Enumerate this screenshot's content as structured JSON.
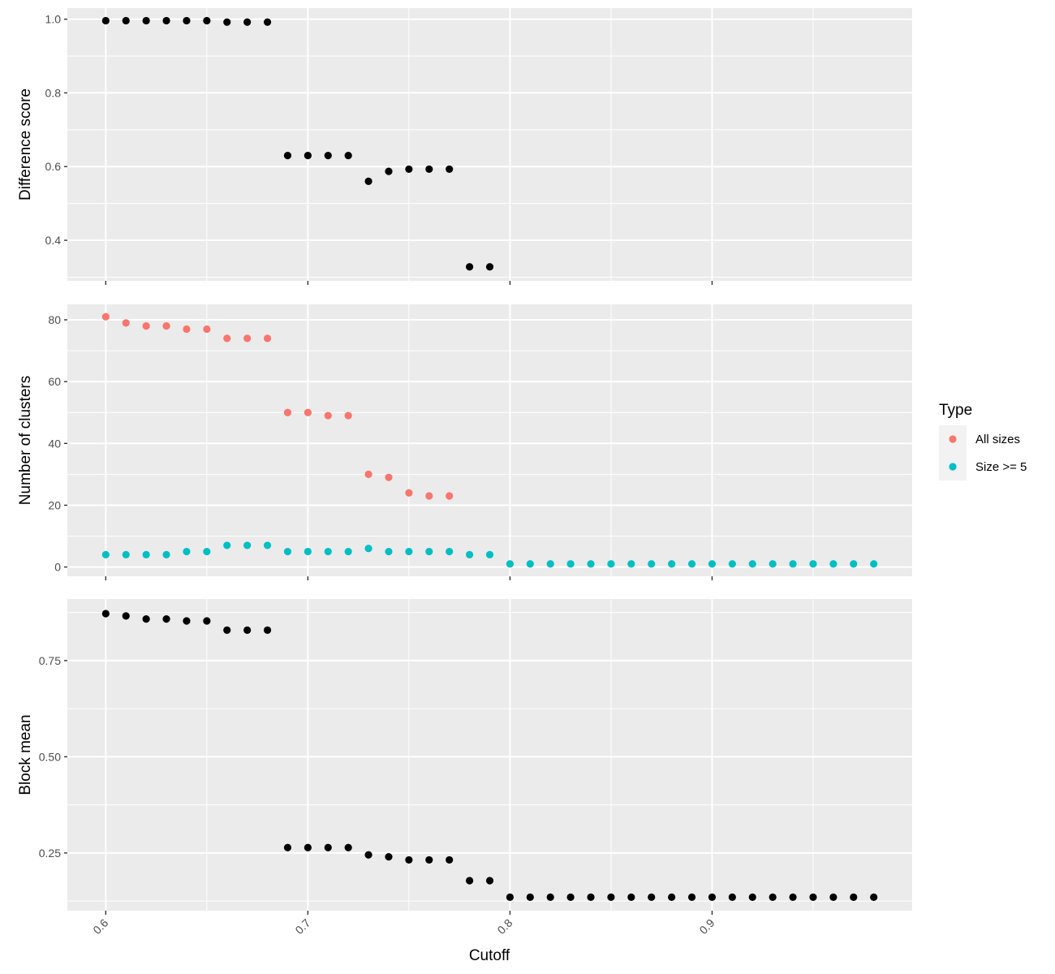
{
  "chart_data": {
    "type": "scatter",
    "xlabel": "Cutoff",
    "x_ticks": [
      0.6,
      0.7,
      0.8,
      0.9
    ],
    "xlim": [
      0.581,
      0.999
    ],
    "panels": [
      {
        "id": "difference",
        "ylabel": "Difference score",
        "ylim": [
          0.29,
          1.03
        ],
        "y_ticks": [
          0.4,
          0.6,
          0.8,
          1.0
        ],
        "y_tick_labels": [
          "0.4",
          "0.6",
          "0.8",
          "1.0"
        ],
        "show_x_labels": false,
        "series": [
          {
            "color": "#000000",
            "x": [
              0.6,
              0.61,
              0.62,
              0.63,
              0.64,
              0.65,
              0.66,
              0.67,
              0.68,
              0.69,
              0.7,
              0.71,
              0.72,
              0.73,
              0.74,
              0.75,
              0.76,
              0.77,
              0.78,
              0.79
            ],
            "y": [
              0.996,
              0.996,
              0.996,
              0.996,
              0.996,
              0.996,
              0.992,
              0.992,
              0.992,
              0.63,
              0.63,
              0.63,
              0.63,
              0.56,
              0.587,
              0.593,
              0.593,
              0.593,
              0.328,
              0.328
            ]
          }
        ]
      },
      {
        "id": "clusters",
        "ylabel": "Number of clusters",
        "ylim": [
          -3,
          85
        ],
        "y_ticks": [
          0,
          20,
          40,
          60,
          80
        ],
        "y_tick_labels": [
          "0",
          "20",
          "40",
          "60",
          "80"
        ],
        "show_x_labels": false,
        "series": [
          {
            "name": "All sizes",
            "color": "#F8766D",
            "x": [
              0.6,
              0.61,
              0.62,
              0.63,
              0.64,
              0.65,
              0.66,
              0.67,
              0.68,
              0.69,
              0.7,
              0.71,
              0.72,
              0.73,
              0.74,
              0.75,
              0.76,
              0.77
            ],
            "y": [
              81,
              79,
              78,
              78,
              77,
              77,
              74,
              74,
              74,
              50,
              50,
              49,
              49,
              30,
              29,
              24,
              23,
              23
            ]
          },
          {
            "name": "Size >= 5",
            "color": "#00BFC4",
            "x": [
              0.6,
              0.61,
              0.62,
              0.63,
              0.64,
              0.65,
              0.66,
              0.67,
              0.68,
              0.69,
              0.7,
              0.71,
              0.72,
              0.73,
              0.74,
              0.75,
              0.76,
              0.77,
              0.78,
              0.79,
              0.8,
              0.81,
              0.82,
              0.83,
              0.84,
              0.85,
              0.86,
              0.87,
              0.88,
              0.89,
              0.9,
              0.91,
              0.92,
              0.93,
              0.94,
              0.95,
              0.96,
              0.97,
              0.98
            ],
            "y": [
              4,
              4,
              4,
              4,
              5,
              5,
              7,
              7,
              7,
              5,
              5,
              5,
              5,
              6,
              5,
              5,
              5,
              5,
              4,
              4,
              1,
              1,
              1,
              1,
              1,
              1,
              1,
              1,
              1,
              1,
              1,
              1,
              1,
              1,
              1,
              1,
              1,
              1,
              1
            ]
          }
        ]
      },
      {
        "id": "blockmean",
        "ylabel": "Block mean",
        "ylim": [
          0.1,
          0.91
        ],
        "y_ticks": [
          0.25,
          0.5,
          0.75
        ],
        "y_tick_labels": [
          "0.25",
          "0.50",
          "0.75"
        ],
        "show_x_labels": true,
        "series": [
          {
            "color": "#000000",
            "x": [
              0.6,
              0.61,
              0.62,
              0.63,
              0.64,
              0.65,
              0.66,
              0.67,
              0.68,
              0.69,
              0.7,
              0.71,
              0.72,
              0.73,
              0.74,
              0.75,
              0.76,
              0.77,
              0.78,
              0.79,
              0.8,
              0.81,
              0.82,
              0.83,
              0.84,
              0.85,
              0.86,
              0.87,
              0.88,
              0.89,
              0.9,
              0.91,
              0.92,
              0.93,
              0.94,
              0.95,
              0.96,
              0.97,
              0.98
            ],
            "y": [
              0.872,
              0.866,
              0.858,
              0.858,
              0.853,
              0.853,
              0.829,
              0.829,
              0.829,
              0.264,
              0.264,
              0.264,
              0.264,
              0.245,
              0.24,
              0.232,
              0.232,
              0.232,
              0.178,
              0.178,
              0.135,
              0.135,
              0.135,
              0.135,
              0.135,
              0.135,
              0.135,
              0.135,
              0.135,
              0.135,
              0.135,
              0.135,
              0.135,
              0.135,
              0.135,
              0.135,
              0.135,
              0.135,
              0.135
            ]
          }
        ]
      }
    ],
    "legend": {
      "title": "Type",
      "position": "right",
      "entries": [
        {
          "label": "All sizes",
          "color": "#F8766D"
        },
        {
          "label": "Size >= 5",
          "color": "#00BFC4"
        }
      ]
    },
    "grid": true,
    "background": "#EBEBEB"
  }
}
